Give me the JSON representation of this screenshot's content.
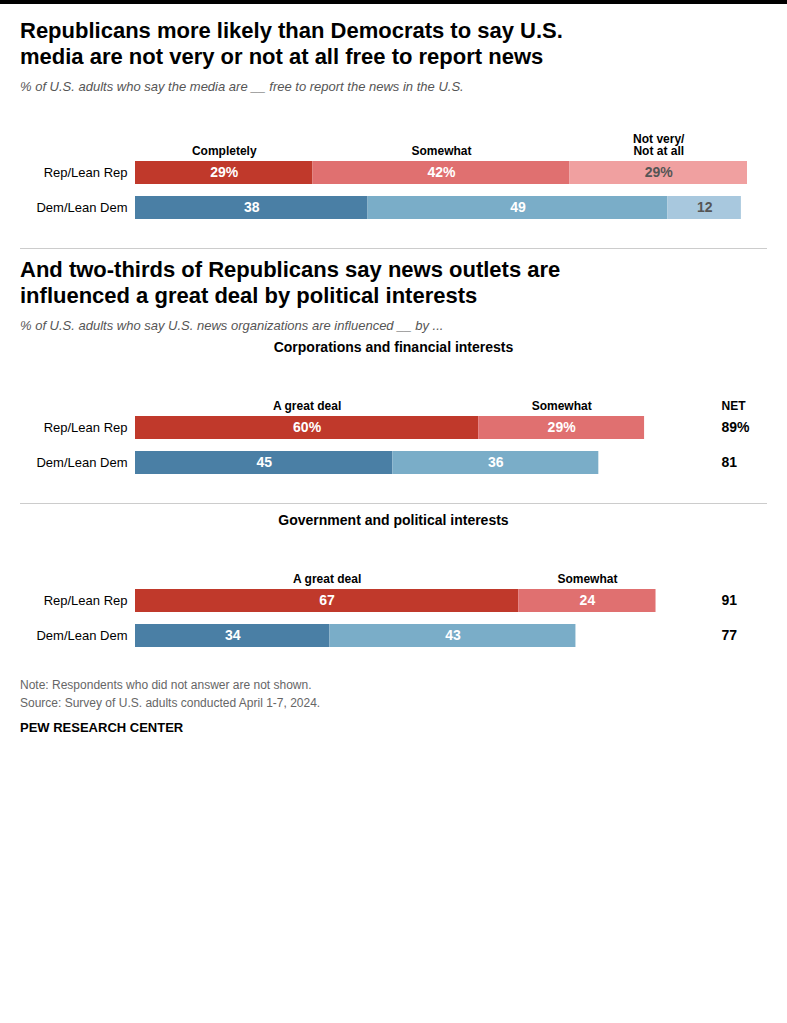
{
  "chart_data": [
    {
      "type": "bar",
      "orientation": "horizontal",
      "stacked": true,
      "data_labels": true,
      "tick_labels": "y",
      "title": "Republicans more likely than Democrats to say U.S.\nmedia are not very or not at all free to report news",
      "subtitle": "% of U.S. adults who say the media are __ free to report the news in the U.S.",
      "categories": [
        "Rep/Lean Rep",
        "Dem/Lean Dem"
      ],
      "xlim": [
        0,
        100
      ],
      "series": [
        {
          "name": "Completely",
          "values": [
            29,
            38
          ],
          "value_labels": [
            "29%",
            "38"
          ],
          "colors": [
            "#c0392b",
            "#4a7fa5"
          ]
        },
        {
          "name": "Somewhat",
          "values": [
            42,
            49
          ],
          "value_labels": [
            "42%",
            "49"
          ],
          "colors": [
            "#e07070",
            "#7aadc8"
          ]
        },
        {
          "name": "Not very/\nNot at all",
          "values": [
            29,
            12
          ],
          "value_labels": [
            "29%",
            "12"
          ],
          "colors": [
            "#f0a0a0",
            "#a8c8de"
          ]
        }
      ]
    },
    {
      "type": "bar",
      "orientation": "horizontal",
      "stacked": true,
      "data_labels": true,
      "tick_labels": "y",
      "title": "And two-thirds of Republicans say news outlets are\ninfluenced a great deal by political interests",
      "subtitle": "% of U.S. adults who say U.S. news organizations are influenced __ by ...",
      "annotations": [
        {
          "text": "Corporations and financial interests"
        }
      ],
      "categories": [
        "Rep/Lean Rep",
        "Dem/Lean Dem"
      ],
      "xlim": [
        0,
        100
      ],
      "series": [
        {
          "name": "A great deal",
          "values": [
            60,
            45
          ],
          "value_labels": [
            "60%",
            "45"
          ],
          "colors": [
            "#c0392b",
            "#4a7fa5"
          ]
        },
        {
          "name": "Somewhat",
          "values": [
            29,
            36
          ],
          "value_labels": [
            "29%",
            "36"
          ],
          "colors": [
            "#e07070",
            "#7aadc8"
          ]
        }
      ],
      "net": {
        "name": "NET",
        "values": [
          89,
          81
        ],
        "value_labels": [
          "89%",
          "81"
        ]
      }
    },
    {
      "type": "bar",
      "orientation": "horizontal",
      "stacked": true,
      "data_labels": true,
      "tick_labels": "y",
      "annotations": [
        {
          "text": "Government and political interests"
        }
      ],
      "categories": [
        "Rep/Lean Rep",
        "Dem/Lean Dem"
      ],
      "xlim": [
        0,
        100
      ],
      "series": [
        {
          "name": "A great deal",
          "values": [
            67,
            34
          ],
          "colors": [
            "#c0392b",
            "#4a7fa5"
          ]
        },
        {
          "name": "Somewhat",
          "values": [
            24,
            43
          ],
          "colors": [
            "#e07070",
            "#7aadc8"
          ]
        }
      ],
      "net": {
        "values": [
          91,
          77
        ]
      },
      "caption": "Note: Respondents who did not answer are not shown.\nSource: Survey of U.S. adults conducted April 1-7, 2024.",
      "credit": "PEW RESEARCH CENTER"
    }
  ]
}
